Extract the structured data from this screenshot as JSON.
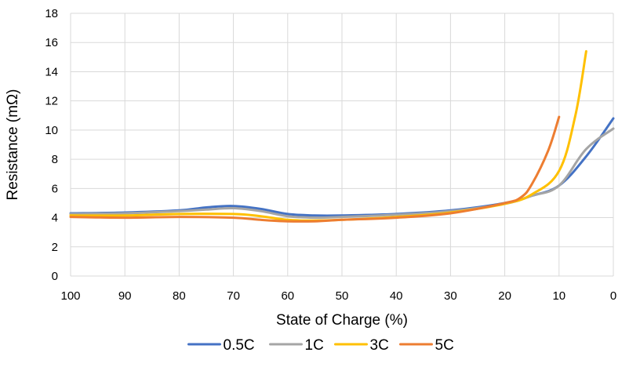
{
  "chart_data": {
    "type": "line",
    "title": "",
    "xlabel": "State of Charge (%)",
    "ylabel": "Resistance (mΩ)",
    "xlim": [
      100,
      0
    ],
    "ylim": [
      0,
      18
    ],
    "x_reversed": true,
    "x_ticks": [
      100,
      90,
      80,
      70,
      60,
      50,
      40,
      30,
      20,
      10,
      0
    ],
    "y_ticks": [
      0,
      2,
      4,
      6,
      8,
      10,
      12,
      14,
      16,
      18
    ],
    "grid": "vertical and horizontal",
    "legend_position": "bottom",
    "series": [
      {
        "name": "0.5C",
        "color": "#4472C4",
        "x": [
          100,
          90,
          80,
          75,
          70,
          65,
          60,
          55,
          50,
          40,
          30,
          20,
          15,
          10,
          5,
          0
        ],
        "y": [
          4.3,
          4.35,
          4.5,
          4.7,
          4.8,
          4.6,
          4.25,
          4.15,
          4.15,
          4.25,
          4.5,
          5.0,
          5.5,
          6.2,
          8.2,
          10.8
        ]
      },
      {
        "name": "1C",
        "color": "#A5A5A5",
        "x": [
          100,
          90,
          80,
          75,
          70,
          65,
          60,
          55,
          50,
          40,
          30,
          20,
          15,
          10,
          5,
          0
        ],
        "y": [
          4.25,
          4.3,
          4.45,
          4.55,
          4.65,
          4.45,
          4.1,
          4.0,
          4.05,
          4.2,
          4.45,
          4.95,
          5.5,
          6.2,
          8.7,
          10.1
        ]
      },
      {
        "name": "3C",
        "color": "#FFC000",
        "x": [
          100,
          90,
          80,
          70,
          65,
          60,
          55,
          50,
          40,
          30,
          20,
          15,
          10,
          7,
          5
        ],
        "y": [
          4.15,
          4.15,
          4.25,
          4.25,
          4.1,
          3.85,
          3.8,
          3.85,
          4.05,
          4.35,
          4.95,
          5.6,
          7.2,
          11.0,
          15.4
        ]
      },
      {
        "name": "5C",
        "color": "#ED7D31",
        "x": [
          100,
          90,
          80,
          70,
          65,
          60,
          55,
          50,
          40,
          30,
          20,
          17,
          15,
          12,
          10
        ],
        "y": [
          4.05,
          4.0,
          4.05,
          4.0,
          3.85,
          3.75,
          3.75,
          3.85,
          4.0,
          4.3,
          5.0,
          5.4,
          6.3,
          8.6,
          10.9
        ]
      }
    ]
  }
}
